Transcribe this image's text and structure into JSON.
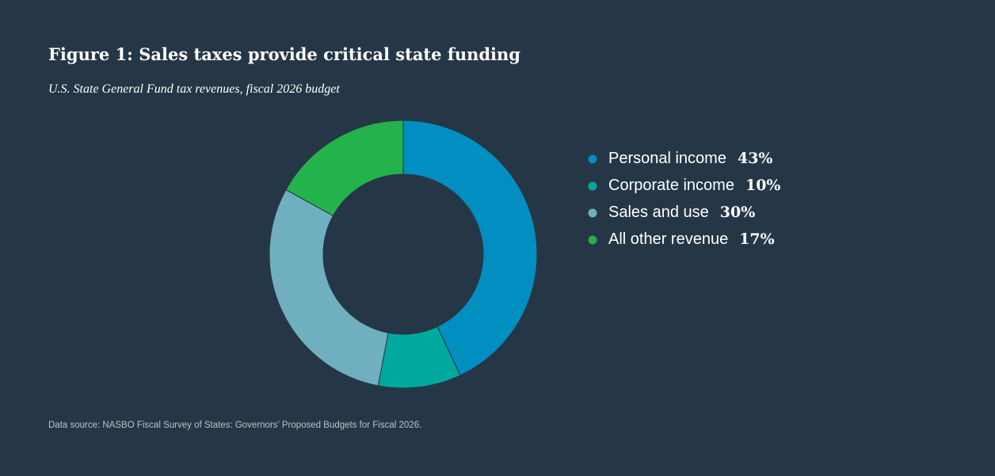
{
  "chart_data": {
    "type": "donut",
    "title": "Figure 1: Sales taxes provide critical state funding",
    "subtitle": "U.S. State General Fund tax revenues, fiscal 2026 budget",
    "categories": [
      "Personal income",
      "Corporate income",
      "Sales and use",
      "All other revenue"
    ],
    "values": [
      43,
      10,
      30,
      17
    ],
    "value_labels": [
      "43%",
      "10%",
      "30%",
      "17%"
    ],
    "colors": [
      "#008fc0",
      "#00a99d",
      "#6fafbf",
      "#24b24b"
    ],
    "source": "Data source: NASBO Fiscal Survey of States: Governors’ Proposed Budgets for Fiscal 2026."
  }
}
